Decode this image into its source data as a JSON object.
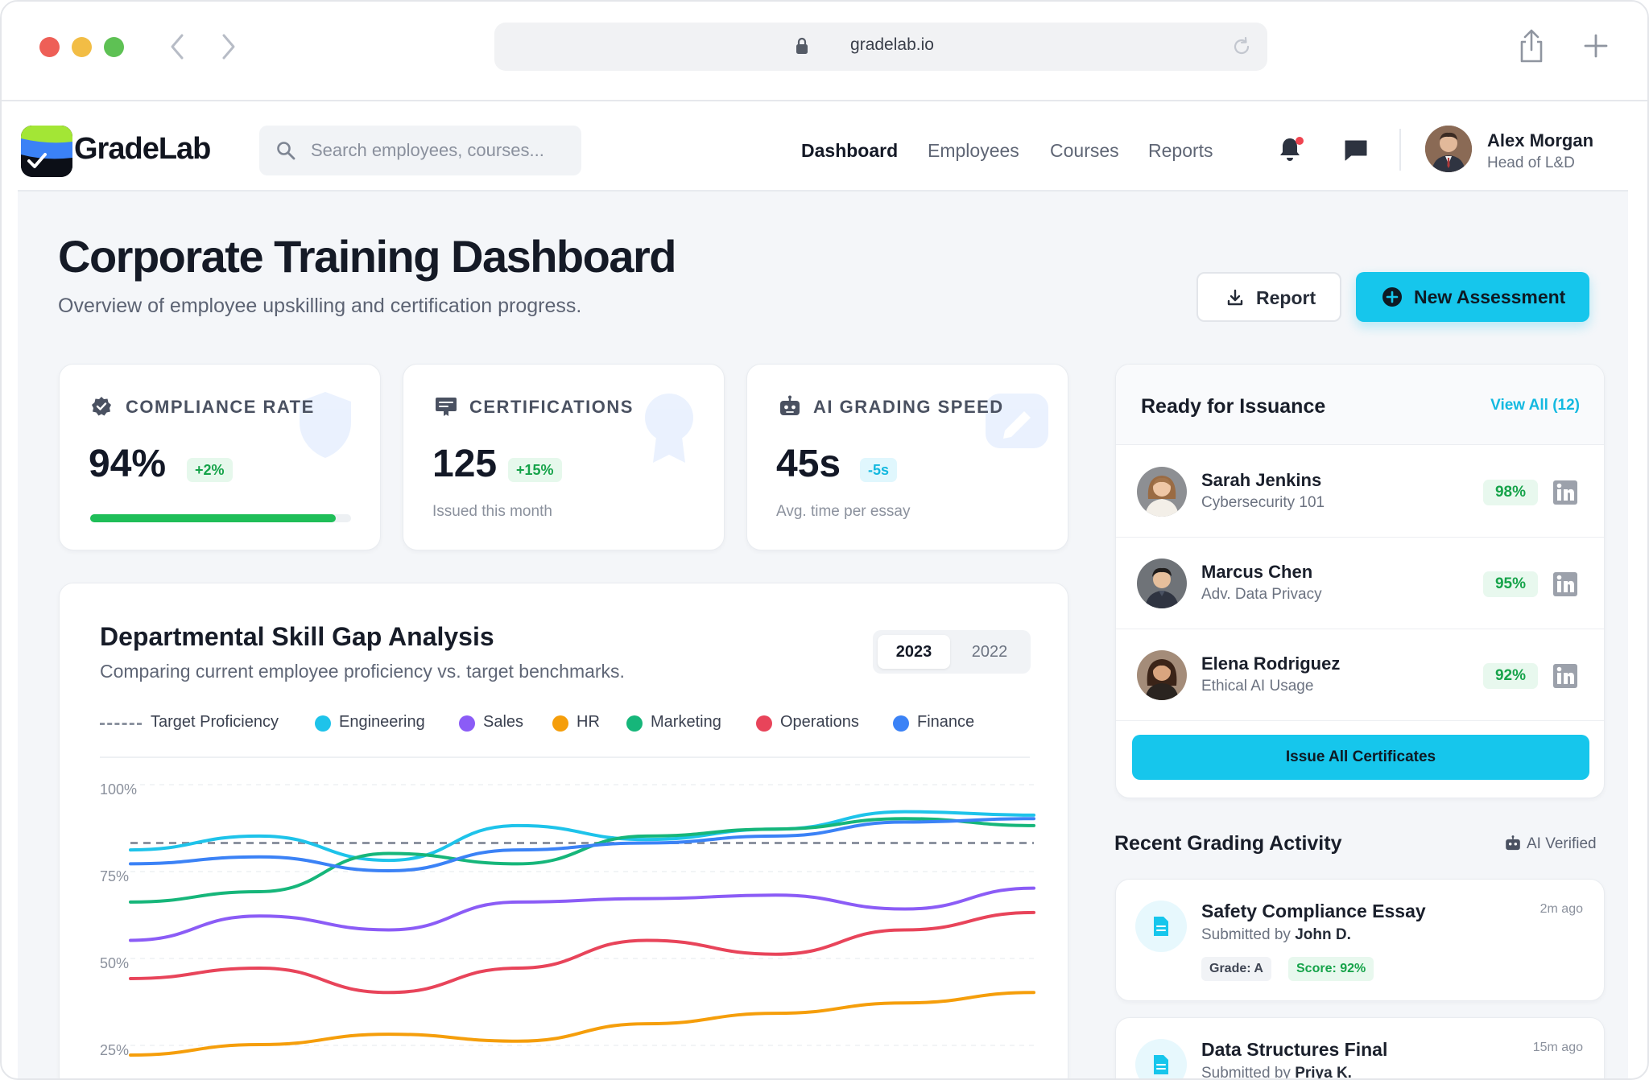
{
  "browser": {
    "url": "gradelab.io"
  },
  "app": {
    "brand": "GradeLab",
    "search_placeholder": "Search employees, courses...",
    "nav": [
      "Dashboard",
      "Employees",
      "Courses",
      "Reports"
    ],
    "active_nav": "Dashboard",
    "user": {
      "name": "Alex Morgan",
      "role": "Head of L&D"
    },
    "has_notification": true
  },
  "header": {
    "title": "Corporate Training Dashboard",
    "subtitle": "Overview of employee upskilling and certification progress.",
    "report_button": "Report",
    "new_button": "New Assessment"
  },
  "stats": [
    {
      "label": "COMPLIANCE RATE",
      "value": "94%",
      "badge": "+2%",
      "badge_tone": "green",
      "progress": 0.94,
      "icon": "verified-badge-icon"
    },
    {
      "label": "CERTIFICATIONS",
      "value": "125",
      "badge": "+15%",
      "badge_tone": "green",
      "note": "Issued this month",
      "icon": "certificate-icon"
    },
    {
      "label": "AI GRADING SPEED",
      "value": "45s",
      "badge": "-5s",
      "badge_tone": "cyan",
      "note": "Avg. time per essay",
      "icon": "robot-icon"
    }
  ],
  "chart_card": {
    "title": "Departmental Skill Gap Analysis",
    "subtitle": "Comparing current employee proficiency vs. target benchmarks.",
    "years": [
      "2023",
      "2022"
    ],
    "active_year": "2023"
  },
  "chart_data": {
    "type": "line",
    "ylim": [
      25,
      100
    ],
    "yticks": [
      "100%",
      "75%",
      "50%",
      "25%"
    ],
    "ytick_values": [
      100,
      75,
      50,
      25
    ],
    "x_points": 8,
    "target": {
      "name": "Target Proficiency",
      "value": 86,
      "color": "#8c93a0",
      "dashed": true
    },
    "series": [
      {
        "name": "Engineering",
        "color": "#1ec3ea",
        "values": [
          84,
          88,
          81,
          91,
          87,
          90,
          95,
          94
        ]
      },
      {
        "name": "Sales",
        "color": "#8b5cf6",
        "values": [
          58,
          65,
          61,
          69,
          70,
          71,
          67,
          73
        ]
      },
      {
        "name": "HR",
        "color": "#f59e0b",
        "values": [
          25,
          28,
          31,
          29,
          34,
          37,
          40,
          43
        ]
      },
      {
        "name": "Marketing",
        "color": "#16b67a",
        "values": [
          69,
          72,
          83,
          80,
          88,
          90,
          93,
          91
        ]
      },
      {
        "name": "Operations",
        "color": "#e8445a",
        "values": [
          47,
          50,
          43,
          50,
          58,
          54,
          61,
          66
        ]
      },
      {
        "name": "Finance",
        "color": "#3b82f6",
        "values": [
          80,
          82,
          78,
          84,
          86,
          88,
          92,
          93
        ]
      }
    ]
  },
  "issuance": {
    "title": "Ready for Issuance",
    "view_all": "View All (12)",
    "people": [
      {
        "name": "Sarah Jenkins",
        "course": "Cybersecurity 101",
        "score": "98%"
      },
      {
        "name": "Marcus Chen",
        "course": "Adv. Data Privacy",
        "score": "95%"
      },
      {
        "name": "Elena Rodriguez",
        "course": "Ethical AI Usage",
        "score": "92%"
      }
    ],
    "issue_button": "Issue All Certificates"
  },
  "recent": {
    "title": "Recent Grading Activity",
    "verified_label": "AI Verified",
    "items": [
      {
        "title": "Safety Compliance Essay",
        "by_prefix": "Submitted by",
        "by": "John D.",
        "time": "2m ago",
        "grade": "Grade: A",
        "score": "Score: 92%"
      },
      {
        "title": "Data Structures Final",
        "by_prefix": "Submitted by",
        "by": "Priya K.",
        "time": "15m ago"
      }
    ]
  }
}
